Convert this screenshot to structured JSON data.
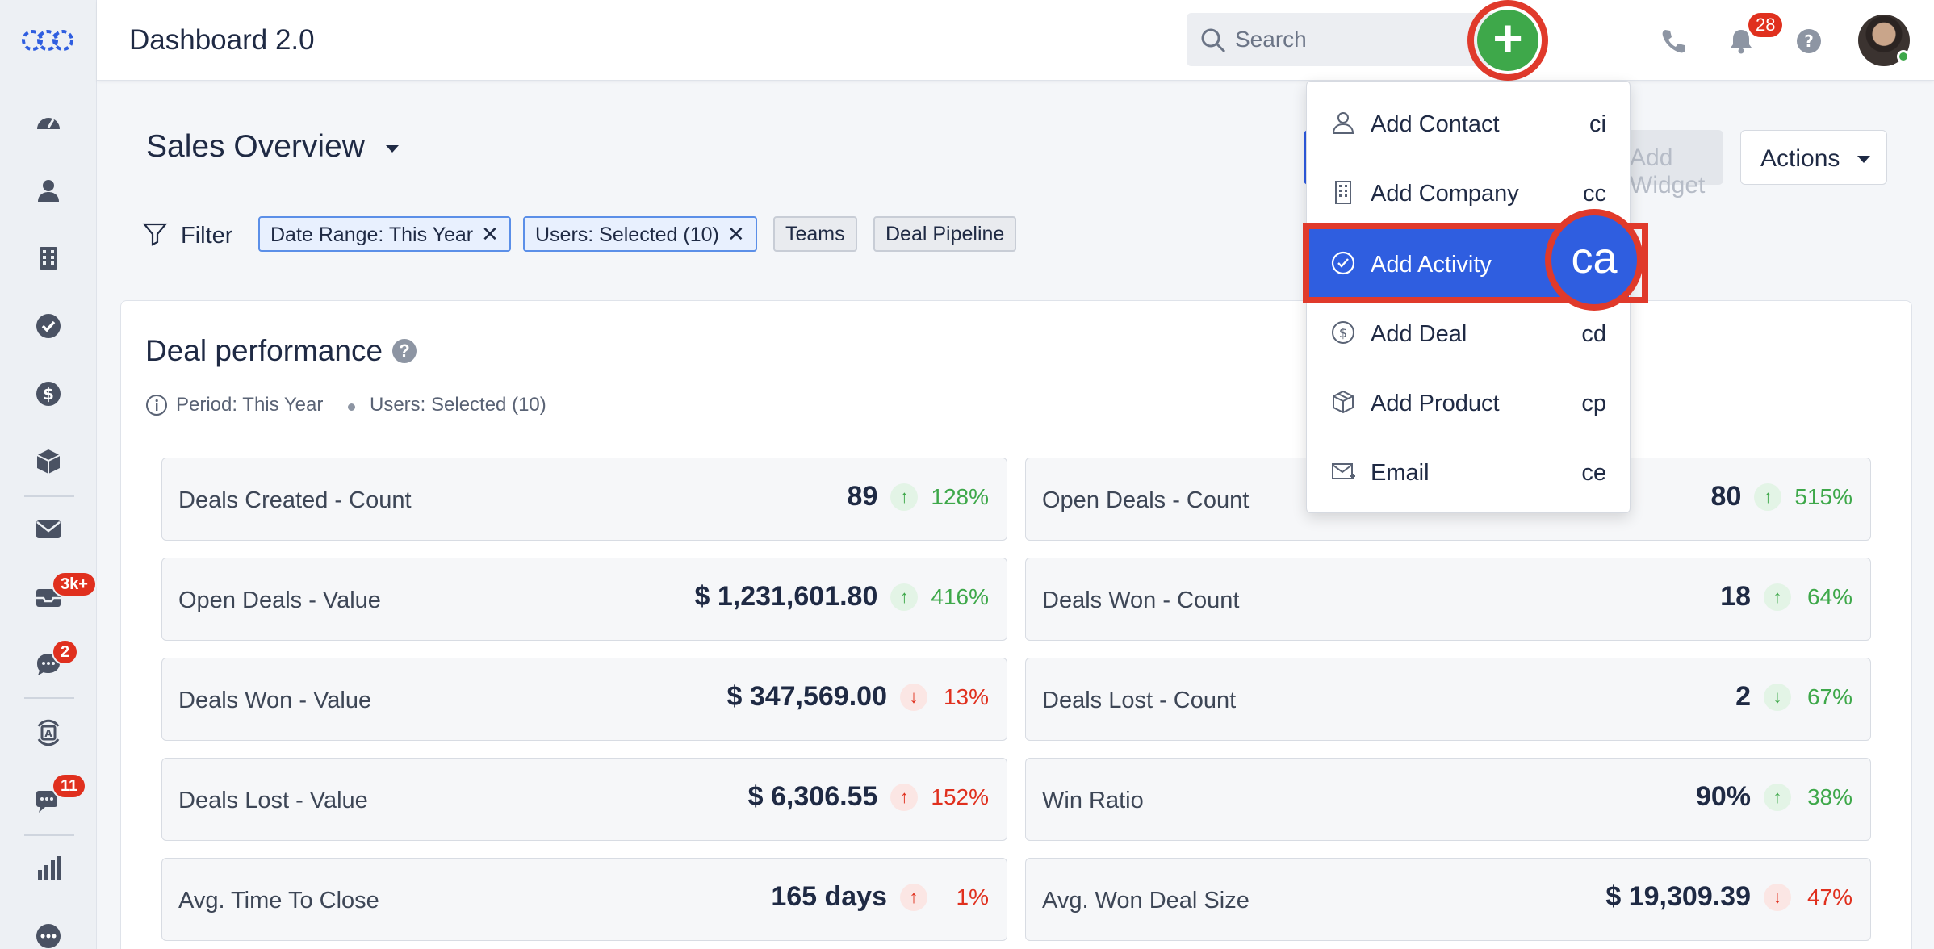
{
  "app": {
    "title": "Dashboard 2.0"
  },
  "search": {
    "placeholder": "Search"
  },
  "topbar": {
    "notification_count": "28"
  },
  "sidebar": {
    "badges": {
      "inbox": "3k+",
      "chat": "2",
      "messages": "11"
    }
  },
  "page": {
    "title": "Sales Overview",
    "add_widget_label": "Add Widget",
    "actions_label": "Actions",
    "filter_label": "Filter",
    "chips": [
      {
        "label": "Date Range: This Year",
        "removable": true
      },
      {
        "label": "Users: Selected (10)",
        "removable": true
      },
      {
        "label": "Teams",
        "removable": false
      },
      {
        "label": "Deal Pipeline",
        "removable": false
      }
    ]
  },
  "card": {
    "title": "Deal performance",
    "period": "Period: This Year",
    "users": "Users: Selected (10)",
    "metrics": [
      {
        "label": "Deals Created - Count",
        "value": "89",
        "trend": "up",
        "color": "green",
        "pct": "128%"
      },
      {
        "label": "Open Deals - Count",
        "value": "80",
        "trend": "up",
        "color": "green",
        "pct": "515%"
      },
      {
        "label": "Open Deals - Value",
        "value": "$ 1,231,601.80",
        "trend": "up",
        "color": "green",
        "pct": "416%"
      },
      {
        "label": "Deals Won - Count",
        "value": "18",
        "trend": "up",
        "color": "green",
        "pct": "64%"
      },
      {
        "label": "Deals Won - Value",
        "value": "$ 347,569.00",
        "trend": "down",
        "color": "red",
        "pct": "13%"
      },
      {
        "label": "Deals Lost - Count",
        "value": "2",
        "trend": "down",
        "color": "green",
        "pct": "67%"
      },
      {
        "label": "Deals Lost - Value",
        "value": "$ 6,306.55",
        "trend": "up",
        "color": "red",
        "pct": "152%"
      },
      {
        "label": "Win Ratio",
        "value": "90%",
        "trend": "up",
        "color": "green",
        "pct": "38%"
      },
      {
        "label": "Avg. Time To Close",
        "value": "165 days",
        "trend": "up",
        "color": "red",
        "pct": "1%"
      },
      {
        "label": "Avg. Won Deal Size",
        "value": "$ 19,309.39",
        "trend": "down",
        "color": "red",
        "pct": "47%"
      }
    ]
  },
  "quick_add_menu": {
    "items": [
      {
        "label": "Add Contact",
        "shortcut": "ci",
        "icon": "user-icon"
      },
      {
        "label": "Add Company",
        "shortcut": "cc",
        "icon": "building-icon"
      },
      {
        "label": "Add Activity",
        "shortcut": "ca",
        "icon": "check-circle-icon",
        "active": true
      },
      {
        "label": "Add Deal",
        "shortcut": "cd",
        "icon": "dollar-circle-icon"
      },
      {
        "label": "Add Product",
        "shortcut": "cp",
        "icon": "box-icon"
      },
      {
        "label": "Email",
        "shortcut": "ce",
        "icon": "email-icon"
      }
    ]
  },
  "colors": {
    "accent_blue": "#2f5ee0",
    "green": "#3ea84a",
    "red": "#e0301e",
    "highlight": "#e03a2b"
  }
}
